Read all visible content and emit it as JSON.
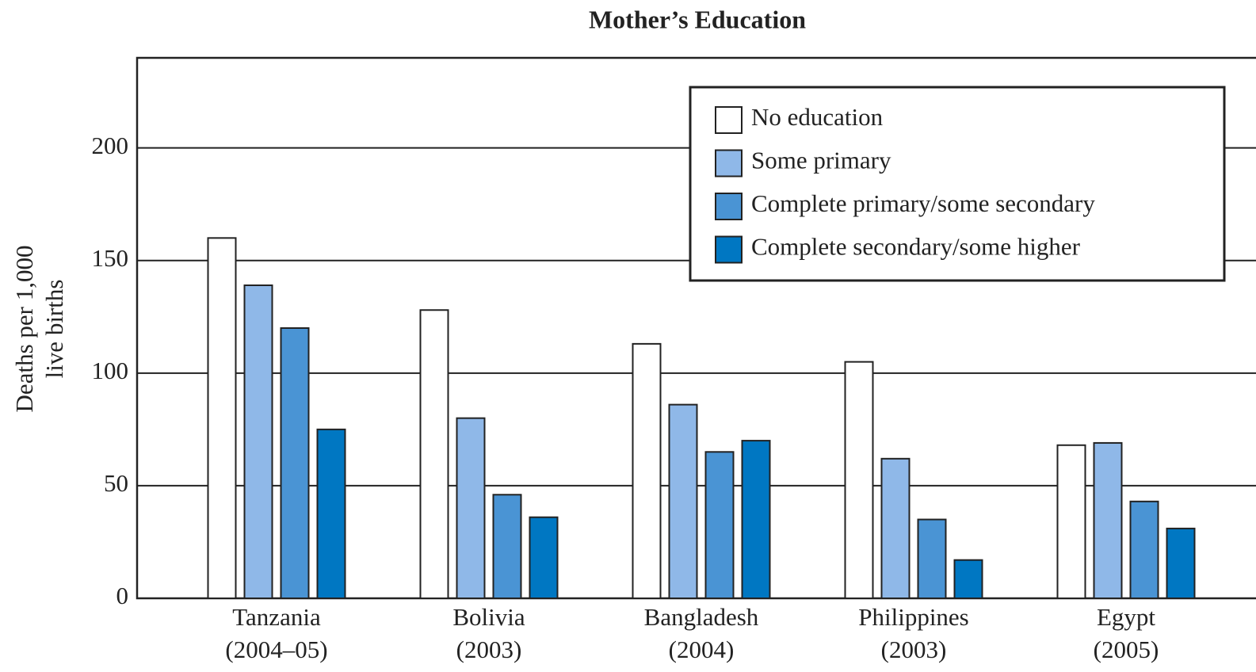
{
  "chart_data": {
    "type": "bar",
    "title": "Mother’s Education",
    "y_label": [
      "Deaths per 1,000",
      "live births"
    ],
    "categories": [
      [
        "Tanzania",
        "(2004–05)"
      ],
      [
        "Bolivia",
        "(2003)"
      ],
      [
        "Bangladesh",
        "(2004)"
      ],
      [
        "Philippines",
        "(2003)"
      ],
      [
        "Egypt",
        "(2005)"
      ]
    ],
    "series": [
      {
        "name": "No education",
        "color": "#ffffff",
        "values": [
          160,
          128,
          113,
          105,
          68
        ]
      },
      {
        "name": "Some primary",
        "color": "#8fb8e8",
        "values": [
          139,
          80,
          86,
          62,
          69
        ]
      },
      {
        "name": "Complete primary/some secondary",
        "color": "#4a94d4",
        "values": [
          120,
          46,
          65,
          35,
          43
        ]
      },
      {
        "name": "Complete secondary/some higher",
        "color": "#0077c2",
        "values": [
          75,
          36,
          70,
          17,
          31
        ]
      }
    ],
    "ylim": [
      0,
      240
    ],
    "yticks": [
      0,
      50,
      100,
      150,
      200
    ],
    "grid": true,
    "legend": "upper right"
  }
}
